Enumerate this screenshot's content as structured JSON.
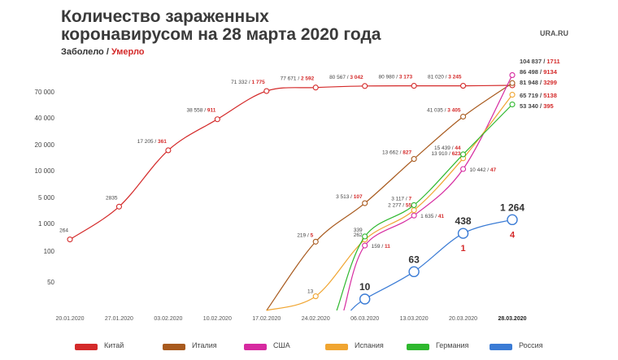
{
  "title_line1": "Количество зараженных",
  "title_line2": "коронавирусом на 28 марта 2020 года",
  "subtitle_infected": "Заболело",
  "subtitle_sep": " / ",
  "subtitle_dead": "Умерло",
  "logo": "URA.RU",
  "chart_data": {
    "type": "line",
    "title": "Количество зараженных коронавирусом на 28 марта 2020 года",
    "xlabel": "",
    "ylabel": "",
    "y_scale": "log",
    "y_ticks": [
      {
        "value": 50,
        "label": "50"
      },
      {
        "value": 100,
        "label": "100"
      },
      {
        "value": 1000,
        "label": "1 000"
      },
      {
        "value": 5000,
        "label": "5 000"
      },
      {
        "value": 10000,
        "label": "10 000"
      },
      {
        "value": 20000,
        "label": "20 000"
      },
      {
        "value": 40000,
        "label": "40 000"
      },
      {
        "value": 70000,
        "label": "70 000"
      }
    ],
    "x_ticks": [
      {
        "day": 0,
        "label": "20.01.2020",
        "bold": false
      },
      {
        "day": 7,
        "label": "27.01.2020",
        "bold": false
      },
      {
        "day": 14,
        "label": "03.02.2020",
        "bold": false
      },
      {
        "day": 21,
        "label": "10.02.2020",
        "bold": false
      },
      {
        "day": 28,
        "label": "17.02.2020",
        "bold": false
      },
      {
        "day": 35,
        "label": "24.02.2020",
        "bold": false
      },
      {
        "day": 42,
        "label": "06.03.2020",
        "bold": false
      },
      {
        "day": 49,
        "label": "13.03.2020",
        "bold": false
      },
      {
        "day": 56,
        "label": "20.03.2020",
        "bold": false
      },
      {
        "day": 63,
        "label": "28.03.2020",
        "bold": true
      }
    ],
    "series": [
      {
        "name": "Китай",
        "color": "#d42a2a",
        "points": [
          [
            0,
            264
          ],
          [
            7,
            2835
          ],
          [
            14,
            17205
          ],
          [
            21,
            38558
          ],
          [
            28,
            71332
          ],
          [
            35,
            77671
          ],
          [
            42,
            80567
          ],
          [
            49,
            80980
          ],
          [
            56,
            81020
          ],
          [
            63,
            81948
          ]
        ],
        "markers": [
          {
            "day": 0,
            "value": 264,
            "infected": "264",
            "dead": ""
          },
          {
            "day": 7,
            "value": 2835,
            "infected": "2835",
            "dead": ""
          },
          {
            "day": 14,
            "value": 17205,
            "infected": "17 205",
            "dead": "361"
          },
          {
            "day": 21,
            "value": 38558,
            "infected": "38 558",
            "dead": "911"
          },
          {
            "day": 28,
            "value": 71332,
            "infected": "71 332",
            "dead": "1 775"
          },
          {
            "day": 35,
            "value": 77671,
            "infected": "77 671",
            "dead": "2 592"
          },
          {
            "day": 42,
            "value": 80567,
            "infected": "80 567",
            "dead": "3 042"
          },
          {
            "day": 49,
            "value": 80980,
            "infected": "80 980",
            "dead": "3 173"
          },
          {
            "day": 56,
            "value": 81020,
            "infected": "81 020",
            "dead": "3 245"
          },
          {
            "day": 63,
            "value": 81948,
            "infected": "81 948",
            "dead": "3299"
          }
        ]
      },
      {
        "name": "Италия",
        "color": "#a85a1e",
        "points": [
          [
            28,
            3
          ],
          [
            35,
            219
          ],
          [
            42,
            3513
          ],
          [
            49,
            13662
          ],
          [
            56,
            41035
          ],
          [
            63,
            86498
          ]
        ],
        "markers": [
          {
            "day": 35,
            "value": 219,
            "infected": "219",
            "dead": "5"
          },
          {
            "day": 42,
            "value": 3513,
            "infected": "3 513",
            "dead": "107"
          },
          {
            "day": 49,
            "value": 13662,
            "infected": "13 662",
            "dead": "827"
          },
          {
            "day": 56,
            "value": 41035,
            "infected": "41 035",
            "dead": "3 405"
          },
          {
            "day": 63,
            "value": 86498,
            "infected": "86 498",
            "dead": "9134"
          }
        ]
      },
      {
        "name": "США",
        "color": "#d62aa0",
        "points": [
          [
            39,
            3
          ],
          [
            42,
            159
          ],
          [
            49,
            1635
          ],
          [
            56,
            10442
          ],
          [
            63,
            104837
          ]
        ],
        "markers": [
          {
            "day": 42,
            "value": 159,
            "infected": "159",
            "dead": "11"
          },
          {
            "day": 49,
            "value": 1635,
            "infected": "1 635",
            "dead": "41"
          },
          {
            "day": 56,
            "value": 10442,
            "infected": "10 442",
            "dead": "47"
          },
          {
            "day": 63,
            "value": 104837,
            "infected": "104 837",
            "dead": "1711"
          }
        ]
      },
      {
        "name": "Испания",
        "color": "#f0a531",
        "points": [
          [
            28,
            3
          ],
          [
            35,
            13
          ],
          [
            42,
            262
          ],
          [
            49,
            2277
          ],
          [
            56,
            13910
          ],
          [
            63,
            65719
          ]
        ],
        "markers": [
          {
            "day": 35,
            "value": 13,
            "infected": "13",
            "dead": ""
          },
          {
            "day": 42,
            "value": 262,
            "infected": "262",
            "dead": ""
          },
          {
            "day": 49,
            "value": 2277,
            "infected": "2 277",
            "dead": "55"
          },
          {
            "day": 56,
            "value": 13910,
            "infected": "13 910",
            "dead": "623"
          },
          {
            "day": 63,
            "value": 65719,
            "infected": "65 719",
            "dead": "5138"
          }
        ]
      },
      {
        "name": "Германия",
        "color": "#2eb82e",
        "points": [
          [
            38,
            3
          ],
          [
            42,
            339
          ],
          [
            49,
            3117
          ],
          [
            56,
            15439
          ],
          [
            63,
            53340
          ]
        ],
        "markers": [
          {
            "day": 42,
            "value": 339,
            "infected": "339",
            "dead": ""
          },
          {
            "day": 49,
            "value": 3117,
            "infected": "3 117",
            "dead": "7"
          },
          {
            "day": 56,
            "value": 15439,
            "infected": "15 439",
            "dead": "44"
          },
          {
            "day": 63,
            "value": 53340,
            "infected": "53 340",
            "dead": "395"
          }
        ]
      },
      {
        "name": "Россия",
        "color": "#3a7bd5",
        "points": [
          [
            40,
            3
          ],
          [
            42,
            10
          ],
          [
            49,
            63
          ],
          [
            56,
            438
          ],
          [
            63,
            1264
          ]
        ],
        "markers": [
          {
            "day": 42,
            "value": 10,
            "infected": "10",
            "dead": ""
          },
          {
            "day": 49,
            "value": 63,
            "infected": "63",
            "dead": ""
          },
          {
            "day": 56,
            "value": 438,
            "infected": "438",
            "dead": "1"
          },
          {
            "day": 63,
            "value": 1264,
            "infected": "1 264",
            "dead": "4"
          }
        ]
      }
    ]
  }
}
